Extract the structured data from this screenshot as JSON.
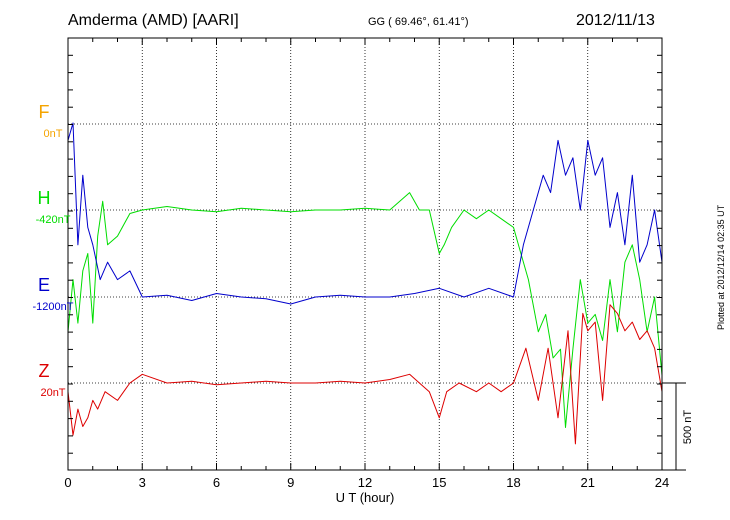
{
  "header": {
    "station": "Amderma (AMD)  [AARI]",
    "coords": "GG ( 69.46°,  61.41°)",
    "date": "2012/11/13"
  },
  "side_note": "Plotted at 2012/12/14 02:35 UT",
  "scale_label": "500 nT",
  "colors": {
    "F": "#f5a400",
    "H": "#00dd00",
    "E": "#0000cc",
    "Z": "#dd0000",
    "axis": "#000000",
    "grid": "#000000"
  },
  "chart_data": {
    "type": "line",
    "xlabel": "U T (hour)",
    "xlim": [
      0,
      24
    ],
    "xticks": [
      "0",
      "3",
      "6",
      "9",
      "12",
      "15",
      "18",
      "21",
      "24"
    ],
    "grid": true,
    "series": [
      {
        "name": "F",
        "baseline_label": "0nT",
        "values": []
      },
      {
        "name": "H",
        "baseline_label": "-420nT",
        "x": [
          0,
          0.2,
          0.4,
          0.6,
          0.8,
          1.0,
          1.2,
          1.4,
          1.6,
          2.0,
          2.5,
          3.0,
          4.0,
          5.0,
          6.0,
          7.0,
          8.0,
          9.0,
          10.0,
          11.0,
          12.0,
          13.0,
          13.8,
          14.2,
          14.6,
          15.0,
          15.2,
          15.5,
          16.0,
          16.5,
          17.0,
          17.5,
          18.0,
          18.3,
          18.6,
          19.0,
          19.3,
          19.6,
          19.9,
          20.1,
          20.4,
          20.7,
          21.0,
          21.3,
          21.6,
          21.9,
          22.2,
          22.5,
          22.8,
          23.1,
          23.4,
          23.7,
          24.0
        ],
        "y": [
          -700,
          -400,
          -650,
          -350,
          -250,
          -650,
          -150,
          50,
          -200,
          -150,
          -20,
          0,
          20,
          0,
          -10,
          10,
          0,
          -10,
          0,
          0,
          10,
          0,
          100,
          0,
          0,
          -250,
          -200,
          -100,
          0,
          -50,
          0,
          -50,
          -100,
          -250,
          -400,
          -700,
          -600,
          -850,
          -800,
          -1250,
          -800,
          -400,
          -650,
          -600,
          -750,
          -400,
          -700,
          -300,
          -200,
          -400,
          -700,
          -500,
          -950
        ]
      },
      {
        "name": "E",
        "baseline_label": "-1200nT",
        "x": [
          0,
          0.2,
          0.4,
          0.6,
          0.8,
          1.0,
          1.3,
          1.6,
          2.0,
          2.5,
          3.0,
          4.0,
          5.0,
          6.0,
          7.0,
          8.0,
          9.0,
          10.0,
          11.0,
          12.0,
          13.0,
          14.0,
          15.0,
          16.0,
          17.0,
          18.0,
          18.4,
          18.8,
          19.2,
          19.5,
          19.8,
          20.1,
          20.4,
          20.7,
          21.0,
          21.3,
          21.6,
          21.9,
          22.2,
          22.5,
          22.8,
          23.1,
          23.4,
          23.7,
          24.0
        ],
        "y": [
          900,
          1000,
          300,
          700,
          400,
          300,
          100,
          200,
          100,
          150,
          0,
          10,
          -20,
          20,
          0,
          -10,
          -40,
          0,
          10,
          0,
          0,
          20,
          50,
          0,
          50,
          0,
          300,
          500,
          700,
          600,
          900,
          700,
          800,
          500,
          900,
          700,
          800,
          400,
          600,
          300,
          700,
          200,
          300,
          500,
          200
        ]
      },
      {
        "name": "Z",
        "baseline_label": "20nT",
        "x": [
          0,
          0.2,
          0.4,
          0.6,
          0.8,
          1.0,
          1.2,
          1.5,
          2.0,
          2.5,
          3.0,
          4.0,
          5.0,
          6.0,
          7.0,
          8.0,
          9.0,
          10.0,
          11.0,
          12.0,
          13.0,
          13.8,
          14.2,
          14.6,
          15.0,
          15.3,
          15.8,
          16.5,
          17.0,
          17.5,
          18.0,
          18.5,
          19.0,
          19.4,
          19.8,
          20.2,
          20.5,
          20.8,
          21.0,
          21.3,
          21.6,
          21.9,
          22.2,
          22.5,
          22.8,
          23.1,
          23.4,
          23.7,
          24.0
        ],
        "y": [
          -50,
          -300,
          -150,
          -250,
          -200,
          -100,
          -150,
          -50,
          -100,
          0,
          50,
          0,
          10,
          -10,
          0,
          10,
          0,
          0,
          10,
          0,
          20,
          50,
          0,
          -50,
          -200,
          -50,
          0,
          -50,
          0,
          -50,
          0,
          200,
          -100,
          200,
          -200,
          300,
          -350,
          400,
          300,
          350,
          -100,
          450,
          400,
          300,
          350,
          250,
          300,
          200,
          -50
        ]
      }
    ]
  }
}
